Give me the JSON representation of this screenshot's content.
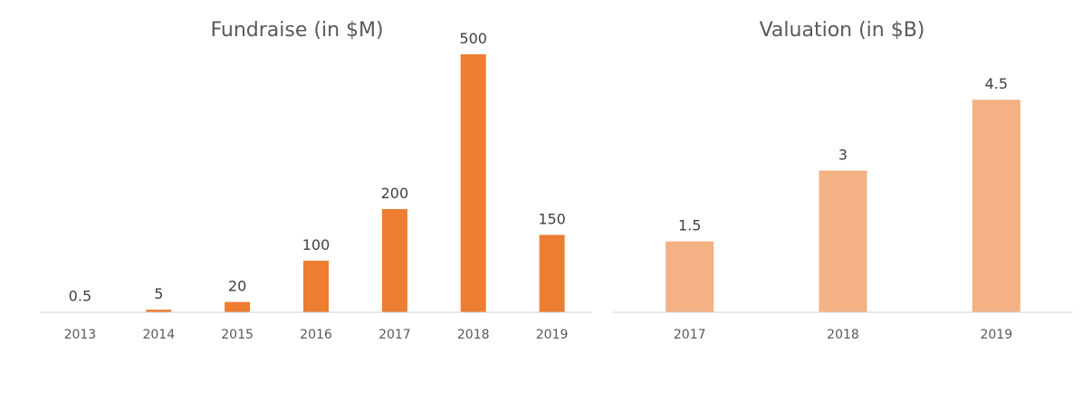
{
  "chart_data": [
    {
      "type": "bar",
      "title": "Fundraise (in $M)",
      "xlabel": "",
      "ylabel": "",
      "categories": [
        "2013",
        "2014",
        "2015",
        "2016",
        "2017",
        "2018",
        "2019"
      ],
      "values": [
        0.5,
        5,
        20,
        100,
        200,
        500,
        150
      ],
      "value_labels": [
        "0.5",
        "5",
        "20",
        "100",
        "200",
        "500",
        "150"
      ],
      "ylim": [
        0,
        500
      ],
      "grid": false,
      "legend": "none",
      "bar_color": "#ED7D31"
    },
    {
      "type": "bar",
      "title": "Valuation (in $B)",
      "xlabel": "",
      "ylabel": "",
      "categories": [
        "2017",
        "2018",
        "2019"
      ],
      "values": [
        1.5,
        3,
        4.5
      ],
      "value_labels": [
        "1.5",
        "3",
        "4.5"
      ],
      "ylim": [
        0,
        5.5
      ],
      "grid": false,
      "legend": "none",
      "bar_color": "#F4B183"
    }
  ]
}
